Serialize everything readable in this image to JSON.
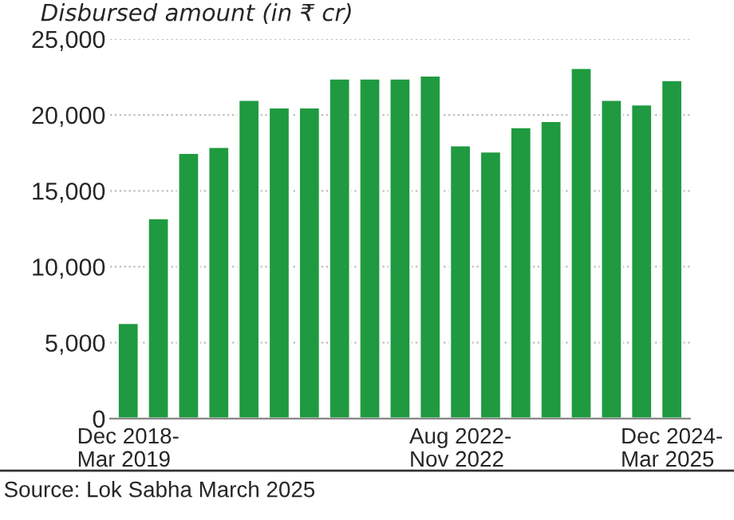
{
  "chart_data": {
    "type": "bar",
    "title": "Disbursed amount (in ₹ cr)",
    "categories": [
      "Dec 2018-\nMar 2019",
      null,
      null,
      null,
      null,
      null,
      null,
      null,
      null,
      null,
      null,
      "Aug 2022-\nNov 2022",
      null,
      null,
      null,
      null,
      null,
      null,
      "Dec 2024-\nMar 2025"
    ],
    "values": [
      6300,
      13200,
      17500,
      17900,
      21000,
      20500,
      20500,
      22400,
      22400,
      22400,
      22600,
      18000,
      17600,
      19200,
      19600,
      23100,
      21000,
      20700,
      22300
    ],
    "color": "#1f9a40",
    "ylim": [
      0,
      25000
    ],
    "yticks": [
      {
        "value": 0,
        "label": "0"
      },
      {
        "value": 5000,
        "label": "5,000"
      },
      {
        "value": 10000,
        "label": "10,000"
      },
      {
        "value": 15000,
        "label": "15,000"
      },
      {
        "value": 20000,
        "label": "20,000"
      },
      {
        "value": 25000,
        "label": "25,000"
      }
    ],
    "grid": "y",
    "annotations": [
      "Source: Lok Sabha March 2025"
    ]
  }
}
